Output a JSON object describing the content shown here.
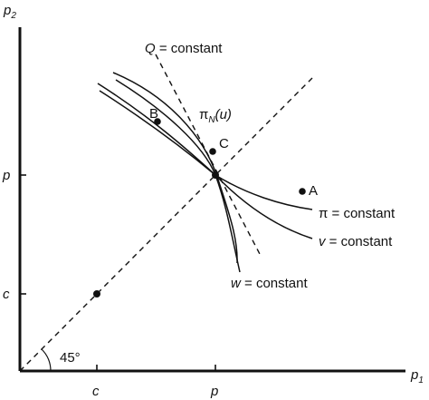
{
  "axes": {
    "y_label_main": "p",
    "y_label_sub": "2",
    "x_label_main": "p",
    "x_label_sub": "1",
    "y_ticks": [
      "p",
      "c"
    ],
    "x_ticks": [
      "c",
      "p"
    ]
  },
  "angle_label": "45°",
  "lines": {
    "q_constant": "Q = constant",
    "pi_n_main": "π",
    "pi_n_sub": "N",
    "pi_n_arg": "(u)"
  },
  "points": {
    "a": "A",
    "b": "B",
    "c": "C"
  },
  "curves": {
    "pi_constant": "π = constant",
    "v_constant": "v = constant",
    "w_constant": "w = constant"
  }
}
